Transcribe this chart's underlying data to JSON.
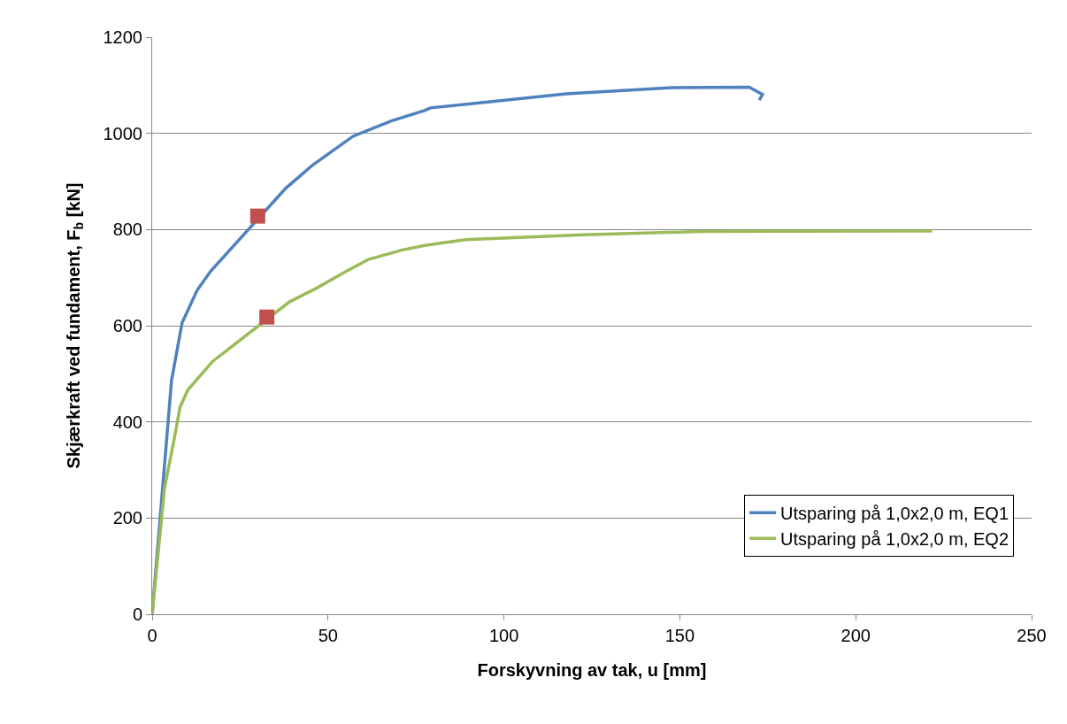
{
  "chart_data": {
    "type": "line",
    "xlabel": "Forskyvning av tak, u [mm]",
    "ylabel": "Skjærkraft ved fundament, F$_{b}$ [kN]",
    "xlim": [
      0,
      250
    ],
    "xticks": [
      0,
      50,
      100,
      150,
      200,
      250
    ],
    "ylim": [
      0,
      1200
    ],
    "yticks": [
      0,
      200,
      400,
      600,
      800,
      1000,
      1200
    ],
    "grid": "y",
    "legend": "bottom right",
    "marker": "none",
    "line_style": "solid",
    "series": [
      {
        "name": "Utsparing på 1,0x2,0 m, EQ1",
        "color": "#4f81bd",
        "x": [
          0,
          5.5,
          8.5,
          12.8,
          16.7,
          38,
          41.8,
          45.6,
          57.1,
          68,
          77.6,
          79.1,
          117.7,
          147.9,
          169.7,
          173.5,
          172.6
        ],
        "values": [
          0,
          486,
          606,
          674,
          714,
          886,
          910,
          934,
          994,
          1026,
          1048,
          1053,
          1082,
          1095,
          1096,
          1081,
          1069
        ]
      },
      {
        "name": "Utsparing på 1,0x2,0 m, EQ2",
        "color": "#9bbb59",
        "x": [
          0,
          3.5,
          6.3,
          7.9,
          10.1,
          17.2,
          39.1,
          46.7,
          54.4,
          61.5,
          71.4,
          77.6,
          89.2,
          122.7,
          156.2,
          221.7
        ],
        "values": [
          0,
          262,
          366,
          430,
          466,
          526,
          650,
          678,
          710,
          738,
          758,
          767,
          779,
          789,
          796,
          797
        ]
      },
      {
        "type": "scatter",
        "marker": "square",
        "color": "#c0504d",
        "x": [
          30,
          32.6
        ],
        "values": [
          828,
          618
        ]
      }
    ]
  }
}
